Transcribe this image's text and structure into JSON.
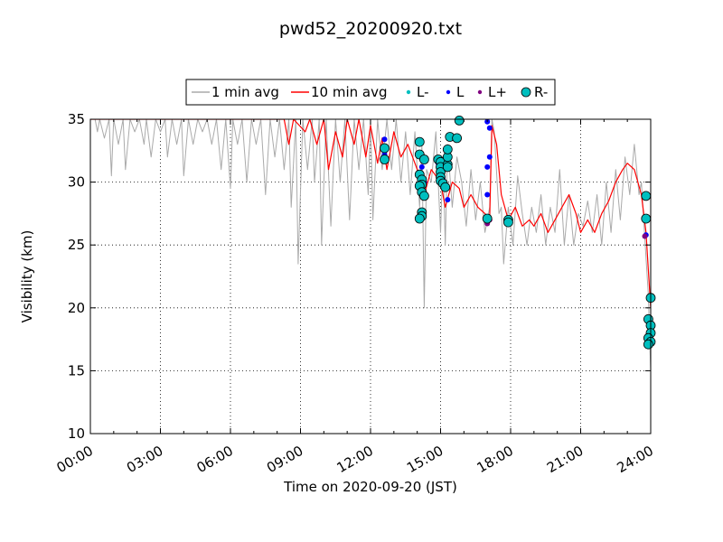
{
  "chart_data": {
    "type": "line",
    "title": "pwd52_20200920.txt",
    "xlabel": "Time on 2020-09-20 (JST)",
    "ylabel": "Visibility (km)",
    "x_unit": "hours",
    "xlim": [
      0,
      24
    ],
    "ylim": [
      10,
      35
    ],
    "grid": true,
    "legend_placement": "top-center, above plot",
    "x_ticks": [
      {
        "v": 0,
        "label": "00:00"
      },
      {
        "v": 3,
        "label": "03:00"
      },
      {
        "v": 6,
        "label": "06:00"
      },
      {
        "v": 9,
        "label": "09:00"
      },
      {
        "v": 12,
        "label": "12:00"
      },
      {
        "v": 15,
        "label": "15:00"
      },
      {
        "v": 18,
        "label": "18:00"
      },
      {
        "v": 21,
        "label": "21:00"
      },
      {
        "v": 24,
        "label": "24:00"
      }
    ],
    "y_ticks": [
      {
        "v": 10,
        "label": "10"
      },
      {
        "v": 15,
        "label": "15"
      },
      {
        "v": 20,
        "label": "20"
      },
      {
        "v": 25,
        "label": "25"
      },
      {
        "v": 30,
        "label": "30"
      },
      {
        "v": 35,
        "label": "35"
      }
    ],
    "series": [
      {
        "name": "1 min avg",
        "kind": "line",
        "color": "#aaaaaa",
        "points": [
          [
            0.2,
            35
          ],
          [
            0.3,
            34
          ],
          [
            0.4,
            35
          ],
          [
            0.6,
            33.5
          ],
          [
            0.8,
            35
          ],
          [
            0.9,
            30.5
          ],
          [
            1.0,
            35
          ],
          [
            1.2,
            33
          ],
          [
            1.4,
            35
          ],
          [
            1.5,
            31
          ],
          [
            1.7,
            35
          ],
          [
            1.9,
            34
          ],
          [
            2.1,
            35
          ],
          [
            2.3,
            33
          ],
          [
            2.4,
            35
          ],
          [
            2.6,
            32
          ],
          [
            2.8,
            35
          ],
          [
            3.0,
            34
          ],
          [
            3.2,
            35
          ],
          [
            3.3,
            32
          ],
          [
            3.5,
            35
          ],
          [
            3.7,
            33
          ],
          [
            3.9,
            35
          ],
          [
            4.0,
            30.5
          ],
          [
            4.2,
            35
          ],
          [
            4.4,
            33
          ],
          [
            4.6,
            35
          ],
          [
            4.8,
            34
          ],
          [
            5.0,
            35
          ],
          [
            5.2,
            33
          ],
          [
            5.4,
            35
          ],
          [
            5.6,
            31
          ],
          [
            5.8,
            35
          ],
          [
            6.0,
            29.5
          ],
          [
            6.1,
            35
          ],
          [
            6.3,
            33
          ],
          [
            6.5,
            35
          ],
          [
            6.7,
            30
          ],
          [
            6.9,
            35
          ],
          [
            7.1,
            33
          ],
          [
            7.3,
            35
          ],
          [
            7.5,
            29
          ],
          [
            7.7,
            35
          ],
          [
            7.9,
            32
          ],
          [
            8.1,
            35
          ],
          [
            8.3,
            31
          ],
          [
            8.5,
            35
          ],
          [
            8.6,
            28
          ],
          [
            8.8,
            35
          ],
          [
            8.9,
            23.5
          ],
          [
            9.1,
            35
          ],
          [
            9.3,
            31
          ],
          [
            9.5,
            35
          ],
          [
            9.6,
            30
          ],
          [
            9.8,
            35
          ],
          [
            9.9,
            25
          ],
          [
            10.1,
            35
          ],
          [
            10.3,
            26.5
          ],
          [
            10.5,
            35
          ],
          [
            10.7,
            30
          ],
          [
            10.9,
            35
          ],
          [
            11.1,
            27
          ],
          [
            11.3,
            35
          ],
          [
            11.5,
            31
          ],
          [
            11.7,
            35
          ],
          [
            11.9,
            29
          ],
          [
            12.0,
            35
          ],
          [
            12.1,
            27
          ],
          [
            12.3,
            35
          ],
          [
            12.5,
            31
          ],
          [
            12.7,
            35
          ],
          [
            12.9,
            31
          ],
          [
            13.1,
            35
          ],
          [
            13.3,
            30
          ],
          [
            13.5,
            34
          ],
          [
            13.7,
            29
          ],
          [
            13.9,
            34
          ],
          [
            14.1,
            28
          ],
          [
            14.2,
            33
          ],
          [
            14.3,
            20
          ],
          [
            14.4,
            31
          ],
          [
            14.6,
            30
          ],
          [
            14.8,
            34
          ],
          [
            15.0,
            26
          ],
          [
            15.1,
            32
          ],
          [
            15.2,
            25
          ],
          [
            15.3,
            33
          ],
          [
            15.5,
            28
          ],
          [
            15.7,
            32
          ],
          [
            15.9,
            30
          ],
          [
            16.1,
            26.5
          ],
          [
            16.3,
            31
          ],
          [
            16.5,
            27
          ],
          [
            16.7,
            30
          ],
          [
            16.9,
            26
          ],
          [
            17.1,
            28
          ],
          [
            17.2,
            35
          ],
          [
            17.3,
            34
          ],
          [
            17.5,
            27.5
          ],
          [
            17.6,
            28
          ],
          [
            17.7,
            23.5
          ],
          [
            17.9,
            28
          ],
          [
            18.1,
            25
          ],
          [
            18.3,
            30.5
          ],
          [
            18.5,
            27.5
          ],
          [
            18.7,
            25
          ],
          [
            18.9,
            28
          ],
          [
            19.1,
            26
          ],
          [
            19.3,
            29
          ],
          [
            19.5,
            25
          ],
          [
            19.7,
            28
          ],
          [
            19.9,
            26
          ],
          [
            20.1,
            31
          ],
          [
            20.3,
            25
          ],
          [
            20.5,
            29
          ],
          [
            20.7,
            25
          ],
          [
            20.9,
            27.5
          ],
          [
            21.1,
            26.5
          ],
          [
            21.3,
            28.5
          ],
          [
            21.5,
            26
          ],
          [
            21.7,
            29
          ],
          [
            21.9,
            25
          ],
          [
            22.1,
            30
          ],
          [
            22.3,
            26
          ],
          [
            22.5,
            31
          ],
          [
            22.7,
            27
          ],
          [
            22.9,
            32
          ],
          [
            23.1,
            29
          ],
          [
            23.3,
            33
          ],
          [
            23.5,
            29
          ],
          [
            23.6,
            30
          ],
          [
            23.8,
            24
          ],
          [
            23.9,
            21
          ],
          [
            24.0,
            15
          ]
        ]
      },
      {
        "name": "10 min avg",
        "kind": "line",
        "color": "#ff0000",
        "points": [
          [
            0,
            35
          ],
          [
            8.3,
            35
          ],
          [
            8.5,
            33
          ],
          [
            8.7,
            35
          ],
          [
            9.2,
            34
          ],
          [
            9.4,
            35
          ],
          [
            9.7,
            33
          ],
          [
            10.0,
            35
          ],
          [
            10.2,
            31
          ],
          [
            10.5,
            34
          ],
          [
            10.8,
            32
          ],
          [
            11.0,
            35
          ],
          [
            11.3,
            33
          ],
          [
            11.5,
            35
          ],
          [
            11.8,
            32
          ],
          [
            12.0,
            34.5
          ],
          [
            12.3,
            31.5
          ],
          [
            12.5,
            33.5
          ],
          [
            12.7,
            31
          ],
          [
            13.0,
            34
          ],
          [
            13.3,
            32
          ],
          [
            13.6,
            33
          ],
          [
            14.0,
            31
          ],
          [
            14.3,
            29
          ],
          [
            14.6,
            31
          ],
          [
            15.0,
            30
          ],
          [
            15.2,
            28
          ],
          [
            15.5,
            30
          ],
          [
            15.8,
            29.5
          ],
          [
            16.0,
            28
          ],
          [
            16.3,
            29
          ],
          [
            16.6,
            28
          ],
          [
            16.9,
            27.5
          ],
          [
            17.1,
            27
          ],
          [
            17.2,
            34.5
          ],
          [
            17.4,
            33
          ],
          [
            17.6,
            29
          ],
          [
            17.9,
            27
          ],
          [
            18.2,
            28
          ],
          [
            18.5,
            26.5
          ],
          [
            18.8,
            27
          ],
          [
            19.0,
            26.5
          ],
          [
            19.3,
            27.5
          ],
          [
            19.6,
            26
          ],
          [
            19.9,
            27
          ],
          [
            20.2,
            28
          ],
          [
            20.5,
            29
          ],
          [
            20.8,
            27.5
          ],
          [
            21.0,
            26
          ],
          [
            21.3,
            27
          ],
          [
            21.6,
            26
          ],
          [
            21.9,
            27.5
          ],
          [
            22.2,
            28.5
          ],
          [
            22.5,
            30
          ],
          [
            22.8,
            31
          ],
          [
            23.0,
            31.5
          ],
          [
            23.3,
            31
          ],
          [
            23.6,
            29
          ],
          [
            23.8,
            26
          ],
          [
            23.9,
            23
          ],
          [
            24.0,
            20
          ]
        ]
      },
      {
        "name": "L-",
        "kind": "marker",
        "color": "#00bfbf",
        "marker_size": 3,
        "points": []
      },
      {
        "name": "L",
        "kind": "marker",
        "color": "#0000ff",
        "marker_size": 3,
        "points": [
          [
            12.6,
            33.4
          ],
          [
            12.6,
            32.2
          ],
          [
            14.2,
            31.2
          ],
          [
            14.3,
            30.0
          ],
          [
            14.9,
            31.5
          ],
          [
            15.1,
            30.2
          ],
          [
            15.3,
            28.6
          ],
          [
            17.0,
            34.8
          ],
          [
            17.1,
            34.3
          ],
          [
            17.1,
            32.0
          ],
          [
            17.0,
            31.2
          ],
          [
            17.0,
            29.0
          ],
          [
            23.8,
            25.8
          ]
        ]
      },
      {
        "name": "L+",
        "kind": "marker",
        "color": "#800080",
        "marker_size": 3,
        "points": [
          [
            17.0,
            26.7
          ],
          [
            17.1,
            27.0
          ],
          [
            23.75,
            25.7
          ]
        ]
      },
      {
        "name": "R-",
        "kind": "marker",
        "color": "#00bfbf",
        "marker_size": 5,
        "points": [
          [
            12.6,
            32.7
          ],
          [
            12.6,
            31.8
          ],
          [
            14.1,
            33.2
          ],
          [
            14.1,
            32.2
          ],
          [
            14.3,
            31.8
          ],
          [
            14.1,
            30.6
          ],
          [
            14.2,
            30.2
          ],
          [
            14.2,
            29.8
          ],
          [
            14.1,
            29.7
          ],
          [
            14.2,
            29.2
          ],
          [
            14.3,
            28.9
          ],
          [
            14.2,
            27.6
          ],
          [
            14.2,
            27.3
          ],
          [
            14.1,
            27.1
          ],
          [
            14.9,
            31.8
          ],
          [
            15.0,
            31.6
          ],
          [
            15.0,
            31.2
          ],
          [
            15.0,
            30.8
          ],
          [
            15.0,
            30.4
          ],
          [
            15.0,
            30.1
          ],
          [
            15.1,
            29.9
          ],
          [
            15.2,
            29.6
          ],
          [
            15.3,
            31.4
          ],
          [
            15.3,
            31.2
          ],
          [
            15.3,
            32.0
          ],
          [
            15.3,
            32.6
          ],
          [
            15.4,
            33.6
          ],
          [
            15.7,
            33.5
          ],
          [
            15.8,
            34.9
          ],
          [
            17.0,
            27.1
          ],
          [
            17.9,
            27.0
          ],
          [
            17.9,
            26.8
          ],
          [
            23.8,
            28.9
          ],
          [
            23.8,
            27.1
          ],
          [
            24.0,
            20.8
          ],
          [
            23.9,
            19.1
          ],
          [
            24.0,
            18.6
          ],
          [
            24.0,
            18.0
          ],
          [
            23.9,
            17.6
          ],
          [
            24.0,
            17.3
          ],
          [
            23.9,
            17.1
          ]
        ]
      }
    ]
  }
}
